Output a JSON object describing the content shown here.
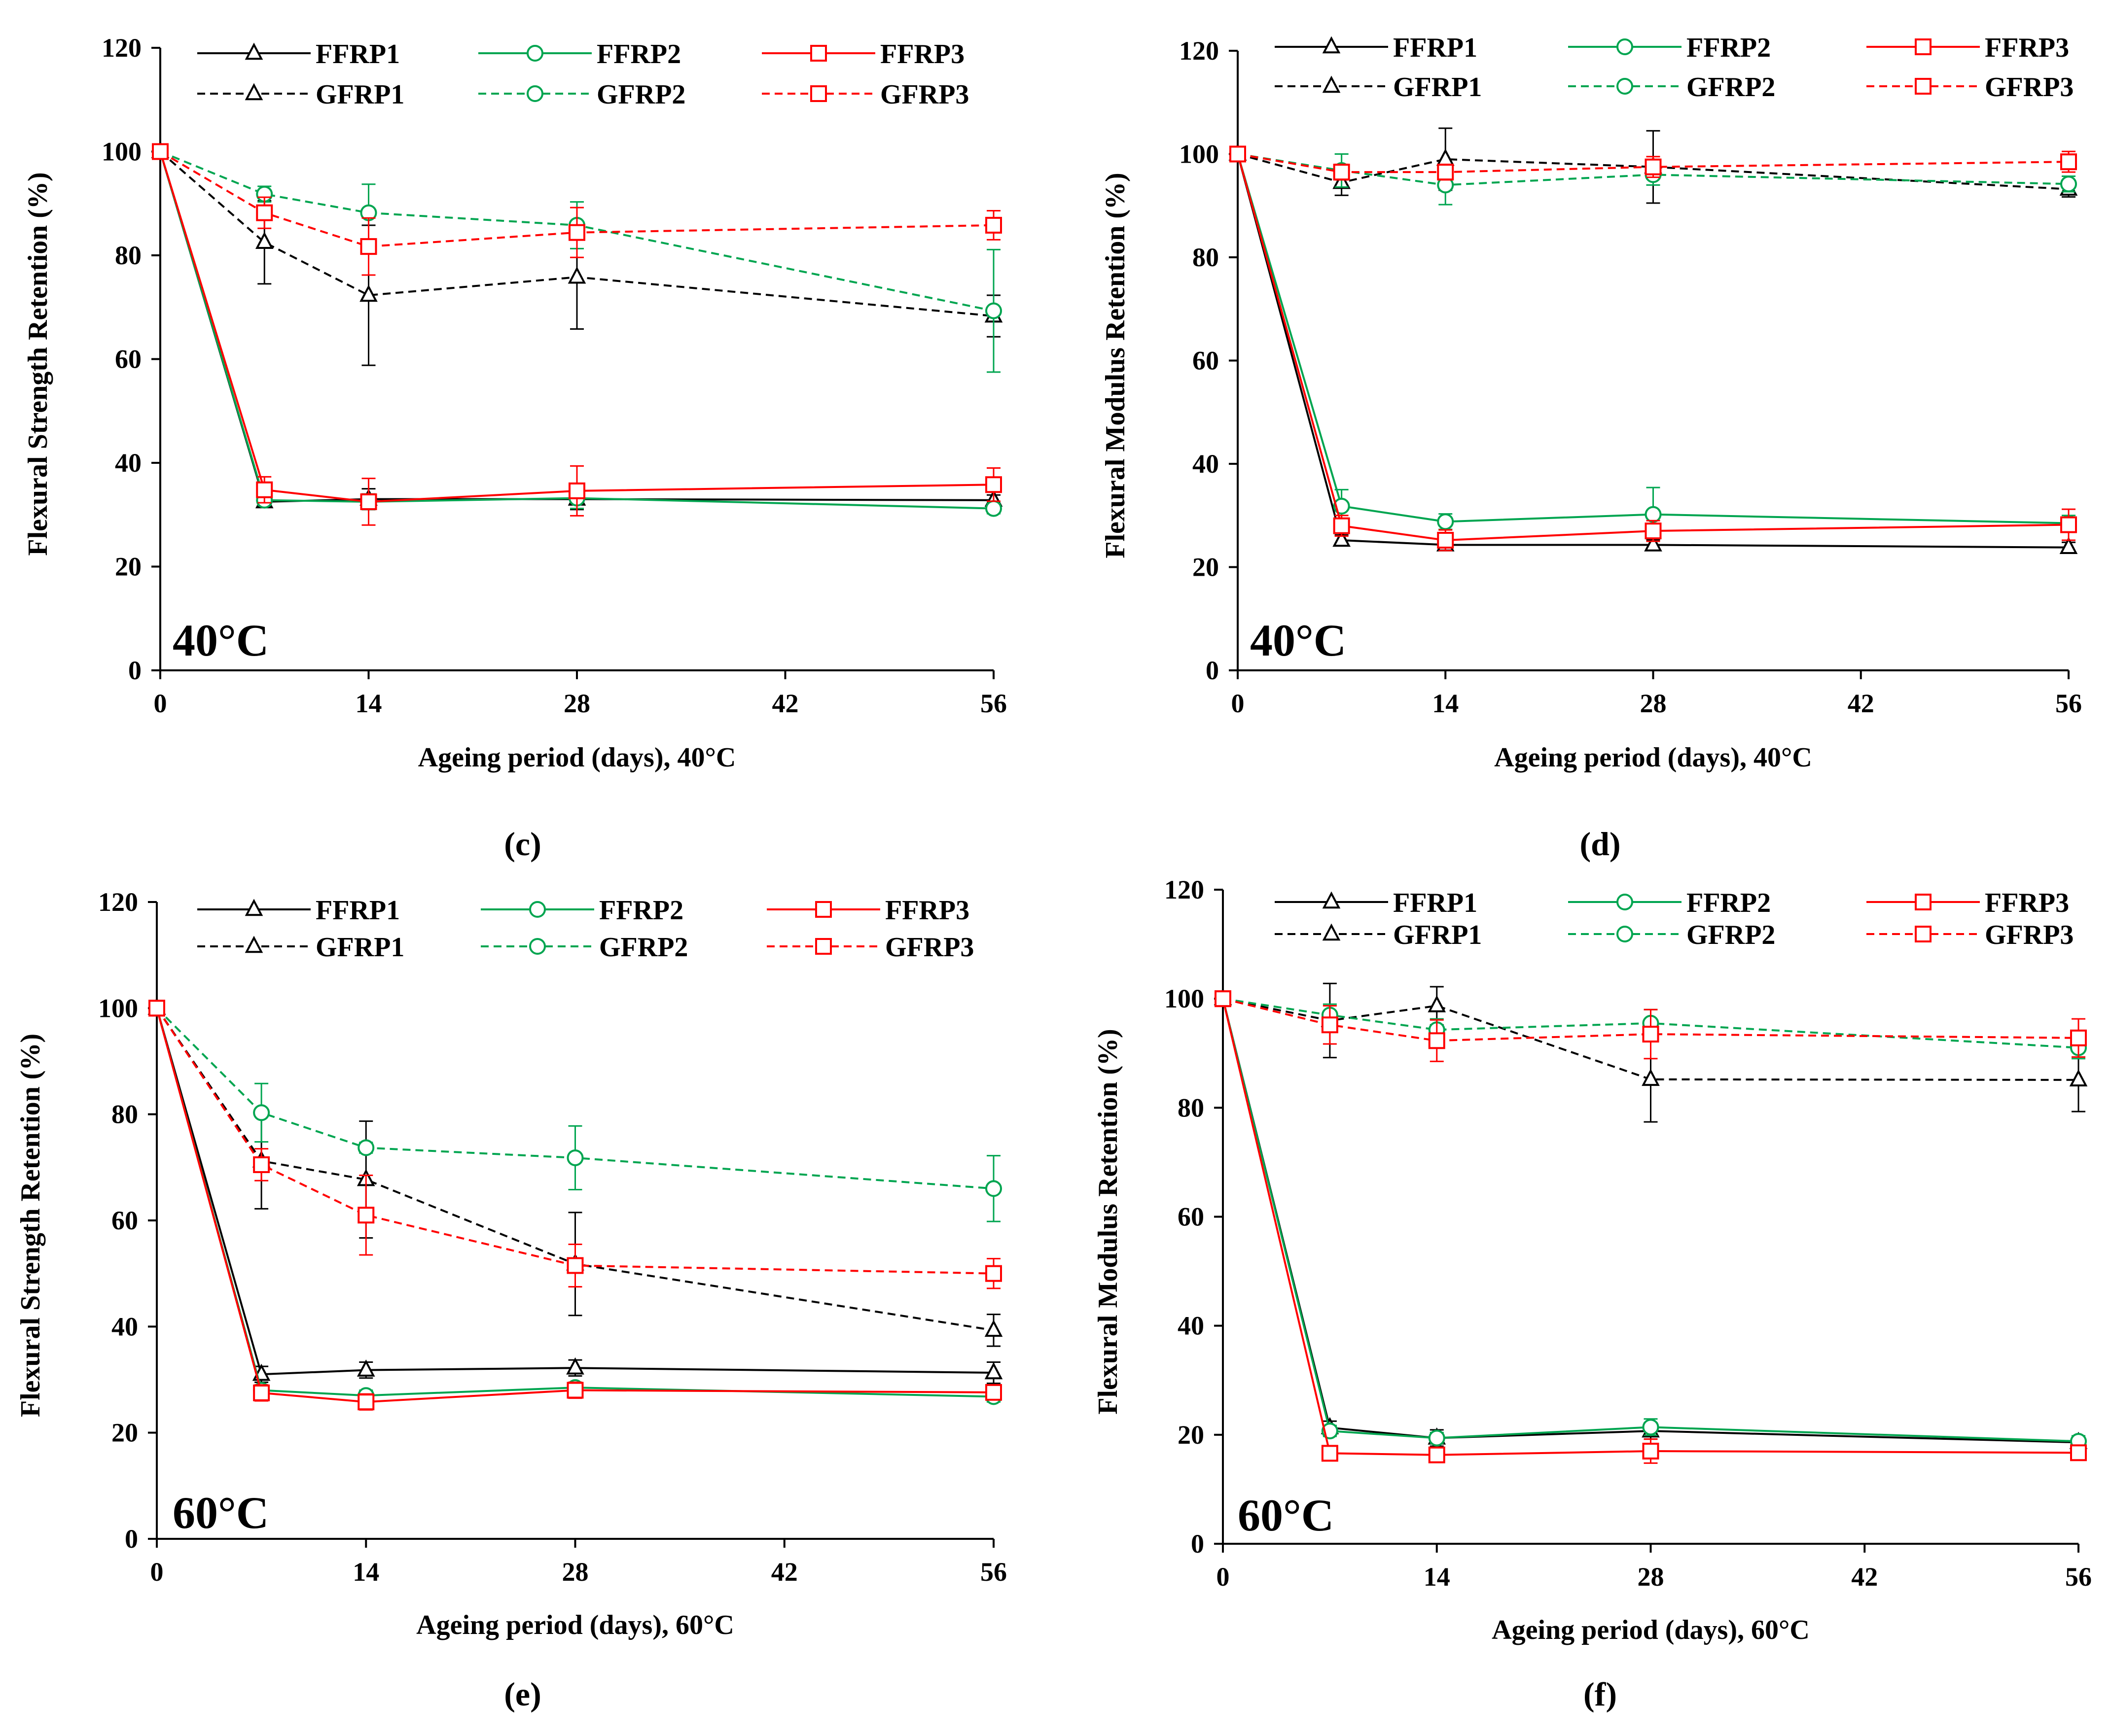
{
  "figure": {
    "series_styles": {
      "FFRP1": {
        "color": "#000000",
        "marker": "triangle",
        "dashed": false
      },
      "FFRP2": {
        "color": "#00a550",
        "marker": "circle",
        "dashed": false
      },
      "FFRP3": {
        "color": "#ff0000",
        "marker": "square",
        "dashed": false
      },
      "GFRP1": {
        "color": "#000000",
        "marker": "triangle",
        "dashed": true
      },
      "GFRP2": {
        "color": "#00a550",
        "marker": "circle",
        "dashed": true
      },
      "GFRP3": {
        "color": "#ff0000",
        "marker": "square",
        "dashed": true
      }
    },
    "legend_order": [
      "FFRP1",
      "FFRP2",
      "FFRP3",
      "GFRP1",
      "GFRP2",
      "GFRP3"
    ]
  },
  "chart_data": [
    {
      "panel_label": "(c)",
      "type": "line",
      "temperature_label": "40°C",
      "xlabel": "Ageing period (days), 40°C",
      "ylabel": "Flexural Strength Retention (%)",
      "xlim": [
        0,
        56
      ],
      "xticks": [
        0,
        14,
        28,
        42,
        56
      ],
      "ylim": [
        0,
        120
      ],
      "yticks": [
        0,
        20,
        40,
        60,
        80,
        100,
        120
      ],
      "x": [
        0,
        7,
        14,
        28,
        56
      ],
      "series": [
        {
          "name": "FFRP1",
          "values": [
            100,
            32.5,
            33,
            33,
            32.8
          ],
          "errors": [
            0,
            1,
            2,
            2,
            1
          ]
        },
        {
          "name": "FFRP2",
          "values": [
            100,
            32.8,
            32.5,
            33.2,
            31.2
          ],
          "errors": [
            0,
            1,
            1.5,
            2,
            1
          ]
        },
        {
          "name": "FFRP3",
          "values": [
            100,
            34.8,
            32.5,
            34.6,
            35.8
          ],
          "errors": [
            0,
            2.5,
            4.5,
            4.8,
            3.2
          ]
        },
        {
          "name": "GFRP1",
          "values": [
            100,
            82.5,
            72.3,
            75.8,
            68.3
          ],
          "errors": [
            0,
            8,
            13.5,
            10,
            4
          ]
        },
        {
          "name": "GFRP2",
          "values": [
            100,
            91.8,
            88.2,
            85.8,
            69.3
          ],
          "errors": [
            0,
            1.5,
            5.5,
            4.5,
            11.8
          ]
        },
        {
          "name": "GFRP3",
          "values": [
            100,
            88.2,
            81.7,
            84.4,
            85.8
          ],
          "errors": [
            0,
            3,
            5.5,
            4.8,
            2.8
          ]
        }
      ]
    },
    {
      "panel_label": "(d)",
      "type": "line",
      "temperature_label": "40°C",
      "xlabel": "Ageing period (days), 40°C",
      "ylabel": "Flexural Modulus Retention (%)",
      "xlim": [
        0,
        56
      ],
      "xticks": [
        0,
        14,
        28,
        42,
        56
      ],
      "ylim": [
        0,
        120
      ],
      "yticks": [
        0,
        20,
        40,
        60,
        80,
        100,
        120
      ],
      "x": [
        0,
        7,
        14,
        28,
        56
      ],
      "series": [
        {
          "name": "FFRP1",
          "values": [
            100,
            25.2,
            24.3,
            24.3,
            23.8
          ],
          "errors": [
            0,
            1,
            1,
            1,
            1
          ]
        },
        {
          "name": "FFRP2",
          "values": [
            100,
            31.8,
            28.8,
            30.2,
            28.5
          ],
          "errors": [
            0,
            3.2,
            1.5,
            5.2,
            1.5
          ]
        },
        {
          "name": "FFRP3",
          "values": [
            100,
            28,
            25.2,
            27,
            28.2
          ],
          "errors": [
            0,
            2,
            2,
            2,
            3
          ]
        },
        {
          "name": "GFRP1",
          "values": [
            100,
            94.5,
            99,
            97.5,
            93.2
          ],
          "errors": [
            0,
            2.5,
            6,
            7,
            1.5
          ]
        },
        {
          "name": "GFRP2",
          "values": [
            100,
            96.8,
            94,
            96,
            94.2
          ],
          "errors": [
            0,
            3.2,
            3.8,
            2,
            1.5
          ]
        },
        {
          "name": "GFRP3",
          "values": [
            100,
            96.5,
            96.5,
            97.5,
            98.5
          ],
          "errors": [
            0,
            1.5,
            1.5,
            2,
            2
          ]
        }
      ]
    },
    {
      "panel_label": "(e)",
      "type": "line",
      "temperature_label": "60°C",
      "xlabel": "Ageing period (days), 60°C",
      "ylabel": "Flexural Strength Retention (%)",
      "xlim": [
        0,
        56
      ],
      "xticks": [
        0,
        14,
        28,
        42,
        56
      ],
      "ylim": [
        0,
        120
      ],
      "yticks": [
        0,
        20,
        40,
        60,
        80,
        100,
        120
      ],
      "x": [
        0,
        7,
        14,
        28,
        56
      ],
      "series": [
        {
          "name": "FFRP1",
          "values": [
            100,
            31,
            31.8,
            32.2,
            31.3
          ],
          "errors": [
            0,
            1.5,
            1.5,
            1.5,
            2
          ]
        },
        {
          "name": "FFRP2",
          "values": [
            100,
            28,
            27,
            28.5,
            26.8
          ],
          "errors": [
            0,
            1,
            1,
            1,
            1
          ]
        },
        {
          "name": "FFRP3",
          "values": [
            100,
            27.5,
            25.8,
            28,
            27.6
          ],
          "errors": [
            0,
            1.5,
            1.5,
            1.5,
            1
          ]
        },
        {
          "name": "GFRP1",
          "values": [
            100,
            71.2,
            67.7,
            51.8,
            39.3
          ],
          "errors": [
            0,
            9,
            11,
            9.7,
            3
          ]
        },
        {
          "name": "GFRP2",
          "values": [
            100,
            80.3,
            73.7,
            71.8,
            66
          ],
          "errors": [
            0,
            5.5,
            1,
            6,
            6.2
          ]
        },
        {
          "name": "GFRP3",
          "values": [
            100,
            70.5,
            61,
            51.5,
            50
          ],
          "errors": [
            0,
            3,
            7.5,
            4,
            2.8
          ]
        }
      ]
    },
    {
      "panel_label": "(f)",
      "type": "line",
      "temperature_label": "60°C",
      "xlabel": "Ageing period (days), 60°C",
      "ylabel": "Flexural Modulus Retention (%)",
      "xlim": [
        0,
        56
      ],
      "xticks": [
        0,
        14,
        28,
        42,
        56
      ],
      "ylim": [
        0,
        120
      ],
      "yticks": [
        0,
        20,
        40,
        60,
        80,
        100,
        120
      ],
      "x": [
        0,
        7,
        14,
        28,
        56
      ],
      "series": [
        {
          "name": "FFRP1",
          "values": [
            100,
            21.3,
            19.4,
            20.7,
            18.6
          ],
          "errors": [
            0,
            1.2,
            1.5,
            1.5,
            1
          ]
        },
        {
          "name": "FFRP2",
          "values": [
            100,
            20.7,
            19.4,
            21.4,
            18.8
          ],
          "errors": [
            0,
            1,
            1,
            1.5,
            1
          ]
        },
        {
          "name": "FFRP3",
          "values": [
            100,
            16.6,
            16.3,
            17,
            16.7
          ],
          "errors": [
            0,
            1,
            1,
            2.2,
            1
          ]
        },
        {
          "name": "GFRP1",
          "values": [
            100,
            96,
            98.7,
            85.2,
            85.1
          ],
          "errors": [
            0,
            6.8,
            3.5,
            7.8,
            5.8
          ]
        },
        {
          "name": "GFRP2",
          "values": [
            100,
            97,
            94.3,
            95.5,
            91
          ],
          "errors": [
            0,
            2,
            2,
            2.5,
            2
          ]
        },
        {
          "name": "GFRP3",
          "values": [
            100,
            95.2,
            92.3,
            93.5,
            92.8
          ],
          "errors": [
            0,
            3.5,
            3.8,
            4.5,
            3.5
          ]
        }
      ]
    }
  ]
}
